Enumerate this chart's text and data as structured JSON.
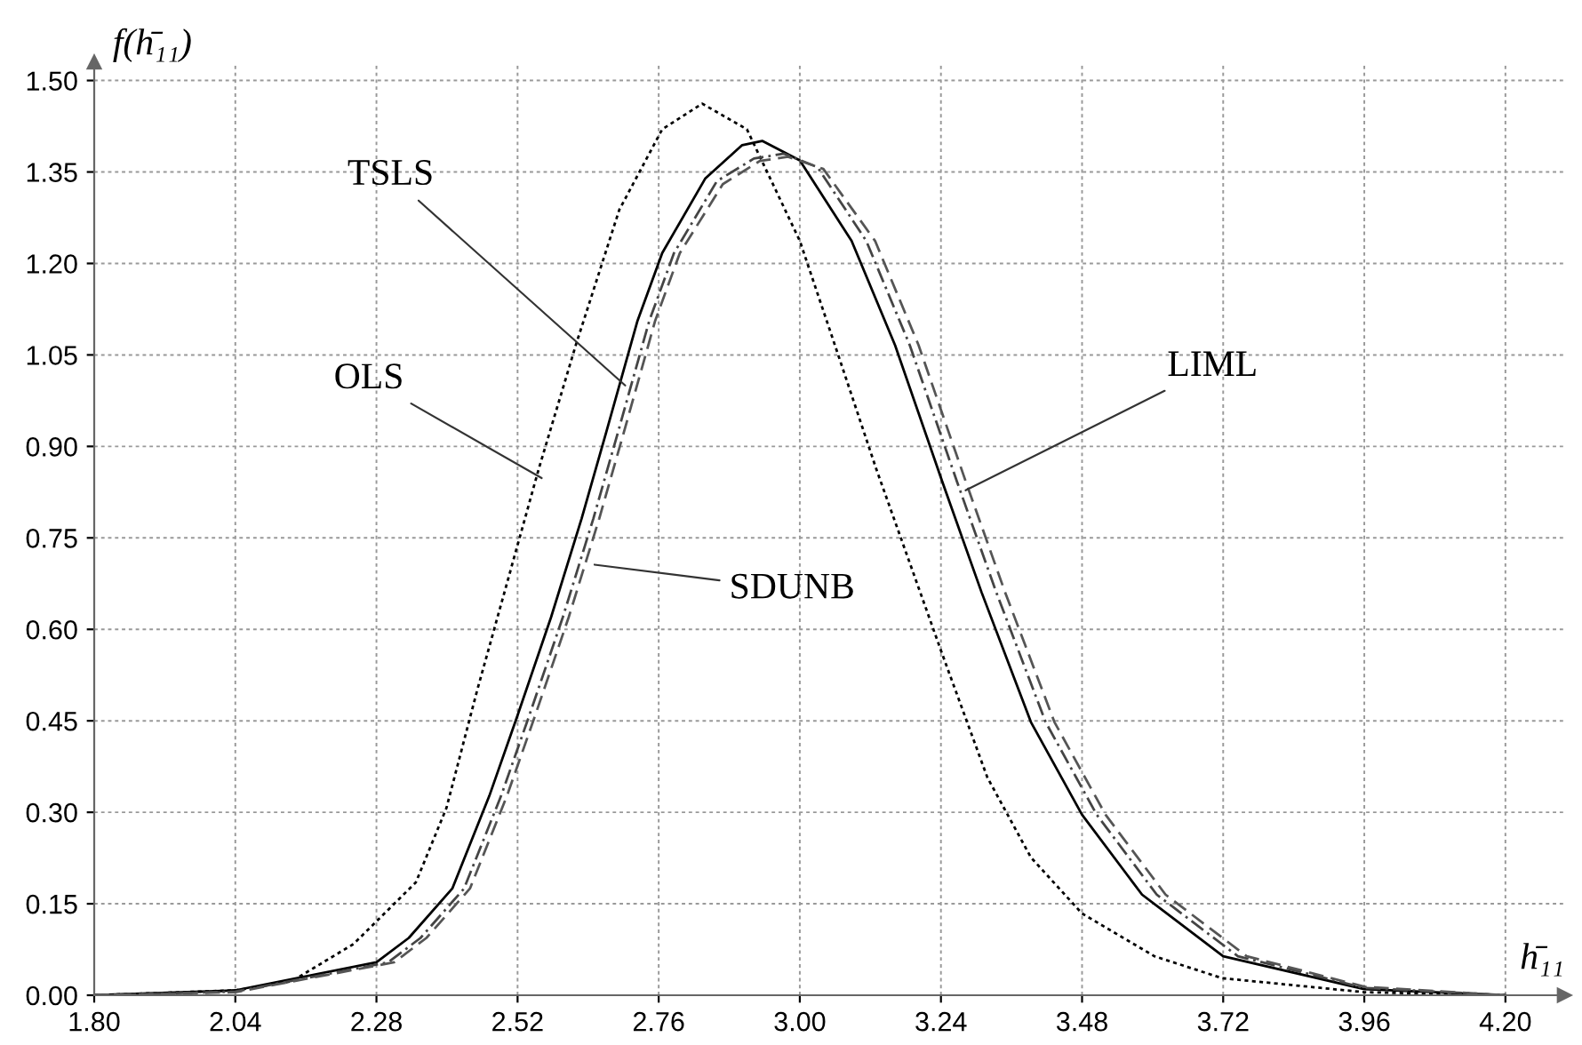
{
  "chart_data": {
    "type": "line",
    "xlabel": "h̄₁₁",
    "ylabel": "f(h̄₁₁)",
    "xlim": [
      1.8,
      4.3
    ],
    "ylim": [
      0,
      1.53
    ],
    "xticks": [
      {
        "value": 1.8,
        "label": "1.80"
      },
      2.04,
      2.28,
      2.52,
      2.76,
      {
        "value": 3.0,
        "label": "3.00"
      },
      3.24,
      3.48,
      3.72,
      3.96,
      {
        "value": 4.2,
        "label": "4.20"
      }
    ],
    "yticks": [
      {
        "value": 0,
        "label": "0.00"
      },
      0.15,
      {
        "value": 0.3,
        "label": "0.30"
      },
      0.45,
      {
        "value": 0.6,
        "label": "0.60"
      },
      0.75,
      {
        "value": 0.9,
        "label": "0.90"
      },
      1.05,
      {
        "value": 1.2,
        "label": "1.20"
      },
      1.35,
      {
        "value": 1.5,
        "label": "1.50"
      }
    ],
    "grid": true,
    "series": [
      {
        "color": "#000000",
        "line_style": "dotted",
        "x": [
          1.8,
          2.04,
          2.136,
          2.241,
          2.347,
          2.399,
          2.451,
          2.556,
          2.619,
          2.693,
          2.766,
          2.834,
          2.91,
          3.0,
          3.067,
          3.13,
          3.242,
          3.319,
          3.393,
          3.48,
          3.603,
          3.718,
          3.96,
          4.2
        ],
        "values": [
          0,
          0.008,
          0.023,
          0.084,
          0.185,
          0.307,
          0.499,
          0.863,
          1.066,
          1.288,
          1.42,
          1.462,
          1.42,
          1.237,
          1.045,
          0.863,
          0.56,
          0.357,
          0.226,
          0.134,
          0.064,
          0.028,
          0.005,
          0
        ]
      },
      {
        "color": "#000000",
        "line_style": "solid",
        "x": [
          1.8,
          2.04,
          2.28,
          2.335,
          2.409,
          2.472,
          2.52,
          2.577,
          2.629,
          2.671,
          2.724,
          2.766,
          2.839,
          2.902,
          2.936,
          3.0,
          3.088,
          3.162,
          3.242,
          3.309,
          3.393,
          3.48,
          3.582,
          3.72,
          3.96,
          4.2
        ],
        "values": [
          0,
          0.008,
          0.054,
          0.094,
          0.175,
          0.327,
          0.459,
          0.62,
          0.782,
          0.924,
          1.106,
          1.217,
          1.339,
          1.394,
          1.401,
          1.369,
          1.237,
          1.066,
          0.843,
          0.661,
          0.448,
          0.296,
          0.165,
          0.064,
          0.01,
          0
        ]
      },
      {
        "color": "#444444",
        "line_style": "dashdot",
        "x": [
          1.8,
          2.04,
          2.3,
          2.355,
          2.429,
          2.492,
          2.54,
          2.597,
          2.649,
          2.691,
          2.744,
          2.786,
          2.859,
          2.922,
          2.973,
          3.03,
          3.113,
          3.187,
          3.267,
          3.334,
          3.418,
          3.505,
          3.607,
          3.745,
          3.96,
          4.2
        ],
        "values": [
          0,
          0.006,
          0.054,
          0.094,
          0.175,
          0.327,
          0.459,
          0.62,
          0.782,
          0.924,
          1.106,
          1.217,
          1.335,
          1.372,
          1.38,
          1.358,
          1.237,
          1.066,
          0.843,
          0.661,
          0.448,
          0.296,
          0.165,
          0.064,
          0.012,
          0
        ]
      },
      {
        "color": "#555555",
        "line_style": "dashed",
        "x": [
          1.8,
          2.04,
          2.31,
          2.365,
          2.439,
          2.502,
          2.55,
          2.607,
          2.659,
          2.701,
          2.754,
          2.796,
          2.869,
          2.932,
          2.98,
          3.04,
          3.128,
          3.202,
          3.282,
          3.349,
          3.433,
          3.52,
          3.622,
          3.76,
          3.96,
          4.2
        ],
        "values": [
          0,
          0.005,
          0.054,
          0.094,
          0.175,
          0.327,
          0.459,
          0.62,
          0.782,
          0.924,
          1.106,
          1.217,
          1.33,
          1.368,
          1.375,
          1.355,
          1.237,
          1.066,
          0.843,
          0.661,
          0.448,
          0.296,
          0.165,
          0.064,
          0.014,
          0
        ]
      }
    ],
    "annotations": [
      {
        "text": "TSLS",
        "x": 2.703,
        "y": 1.0
      },
      {
        "text": "OLS",
        "x": 2.561,
        "y": 0.848
      },
      {
        "text": "SDUNB",
        "x": 2.651,
        "y": 0.706
      },
      {
        "text": "LIML",
        "x": 3.282,
        "y": 0.828
      }
    ]
  }
}
